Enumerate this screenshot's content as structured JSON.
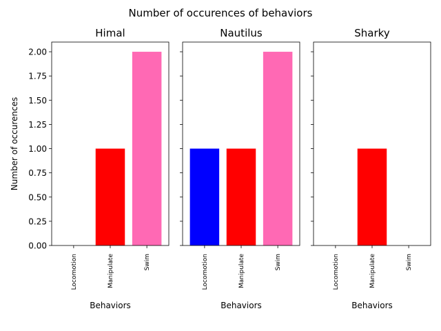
{
  "suptitle": "Number of occurences of behaviors",
  "chart_data": [
    {
      "type": "bar",
      "title": "Himal",
      "xlabel": "Behaviors",
      "ylabel": "Number of occurences",
      "categories": [
        "Locomotion",
        "Manipulate",
        "Swim"
      ],
      "values": [
        0,
        1,
        2
      ],
      "colors": [
        "#0000ff",
        "#ff0000",
        "#ff69b4"
      ],
      "ylim": [
        0,
        2.1
      ],
      "yticks": [
        "0.00",
        "0.25",
        "0.50",
        "0.75",
        "1.00",
        "1.25",
        "1.50",
        "1.75",
        "2.00"
      ],
      "grid": false
    },
    {
      "type": "bar",
      "title": "Nautilus",
      "xlabel": "Behaviors",
      "ylabel": "",
      "categories": [
        "Locomotion",
        "Manipulate",
        "Swim"
      ],
      "values": [
        1,
        1,
        2
      ],
      "colors": [
        "#0000ff",
        "#ff0000",
        "#ff69b4"
      ],
      "ylim": [
        0,
        2.1
      ],
      "yticks": [
        "0.00",
        "0.25",
        "0.50",
        "0.75",
        "1.00",
        "1.25",
        "1.50",
        "1.75",
        "2.00"
      ],
      "grid": false
    },
    {
      "type": "bar",
      "title": "Sharky",
      "xlabel": "Behaviors",
      "ylabel": "",
      "categories": [
        "Locomotion",
        "Manipulate",
        "Swim"
      ],
      "values": [
        0,
        1,
        0
      ],
      "colors": [
        "#0000ff",
        "#ff0000",
        "#ff69b4"
      ],
      "ylim": [
        0,
        2.1
      ],
      "yticks": [
        "0.00",
        "0.25",
        "0.50",
        "0.75",
        "1.00",
        "1.25",
        "1.50",
        "1.75",
        "2.00"
      ],
      "grid": false
    }
  ]
}
